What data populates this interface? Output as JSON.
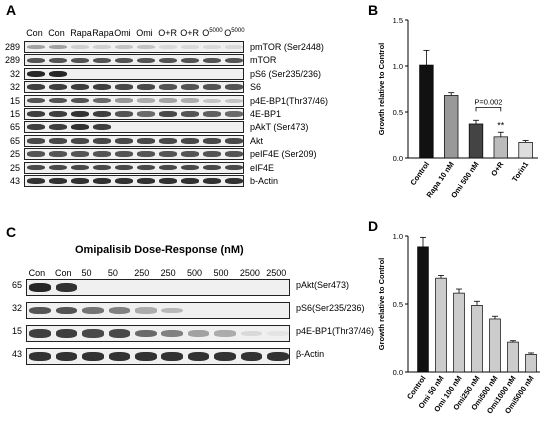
{
  "panelA": {
    "letter": "A",
    "lanes": [
      "Con",
      "Con",
      "Rapa",
      "Rapa",
      "Omi",
      "Omi",
      "O+R",
      "O+R",
      "O5000",
      "O5000"
    ],
    "rows": [
      {
        "mw": "289",
        "antibody": "pmTOR (Ser2448)",
        "levels": [
          0.35,
          0.35,
          0.15,
          0.15,
          0.2,
          0.2,
          0.1,
          0.1,
          0.1,
          0.1
        ]
      },
      {
        "mw": "289",
        "antibody": "mTOR",
        "levels": [
          0.7,
          0.7,
          0.7,
          0.7,
          0.7,
          0.7,
          0.7,
          0.7,
          0.7,
          0.7
        ]
      },
      {
        "mw": "32",
        "antibody": "pS6 (Ser235/236)",
        "levels": [
          0.9,
          0.9,
          0,
          0,
          0,
          0,
          0,
          0,
          0,
          0
        ]
      },
      {
        "mw": "32",
        "antibody": "S6",
        "levels": [
          0.8,
          0.8,
          0.8,
          0.8,
          0.75,
          0.75,
          0.7,
          0.7,
          0.7,
          0.7
        ]
      },
      {
        "mw": "15",
        "antibody": "p4E-BP1(Thr37/46)",
        "levels": [
          0.7,
          0.7,
          0.7,
          0.6,
          0.4,
          0.3,
          0.35,
          0.3,
          0.2,
          0.2
        ]
      },
      {
        "mw": "15",
        "antibody": "4E-BP1",
        "levels": [
          0.8,
          0.8,
          0.85,
          0.8,
          0.7,
          0.6,
          0.75,
          0.7,
          0.65,
          0.6
        ]
      },
      {
        "mw": "65",
        "antibody": "pAkT (Ser473)",
        "levels": [
          0.8,
          0.8,
          0.85,
          0.8,
          0,
          0,
          0,
          0,
          0,
          0
        ]
      },
      {
        "mw": "65",
        "antibody": "Akt",
        "levels": [
          0.75,
          0.75,
          0.75,
          0.75,
          0.75,
          0.75,
          0.75,
          0.75,
          0.75,
          0.75
        ]
      },
      {
        "mw": "25",
        "antibody": "peIF4E (Ser209)",
        "levels": [
          0.7,
          0.7,
          0.7,
          0.7,
          0.7,
          0.7,
          0.7,
          0.7,
          0.7,
          0.7
        ]
      },
      {
        "mw": "25",
        "antibody": "eIF4E",
        "levels": [
          0.75,
          0.75,
          0.75,
          0.75,
          0.75,
          0.75,
          0.75,
          0.75,
          0.75,
          0.75
        ]
      },
      {
        "mw": "43",
        "antibody": "b-Actin",
        "levels": [
          0.85,
          0.85,
          0.85,
          0.85,
          0.85,
          0.85,
          0.85,
          0.85,
          0.85,
          0.85
        ]
      }
    ]
  },
  "panelC": {
    "letter": "C",
    "title": "Omipalisib Dose-Response (nM)",
    "lanes": [
      "Con",
      "Con",
      "50",
      "50",
      "250",
      "250",
      "500",
      "500",
      "2500",
      "2500"
    ],
    "rows": [
      {
        "mw": "65",
        "antibody": "pAkt(Ser473)",
        "levels": [
          0.9,
          0.85,
          0,
          0,
          0,
          0,
          0,
          0,
          0,
          0
        ]
      },
      {
        "mw": "32",
        "antibody": "pS6(Ser235/236)",
        "levels": [
          0.7,
          0.7,
          0.55,
          0.5,
          0.3,
          0.25,
          0,
          0,
          0,
          0
        ]
      },
      {
        "mw": "15",
        "antibody": "p4E-BP1(Thr37/46)",
        "levels": [
          0.8,
          0.8,
          0.75,
          0.75,
          0.6,
          0.5,
          0.35,
          0.3,
          0.1,
          0.05
        ]
      },
      {
        "mw": "43",
        "antibody": "β-Actin",
        "levels": [
          0.85,
          0.85,
          0.85,
          0.85,
          0.85,
          0.85,
          0.85,
          0.85,
          0.85,
          0.85
        ]
      }
    ]
  },
  "chart_data": [
    {
      "panel": "B",
      "type": "bar",
      "ylabel": "Growth relative to Control",
      "ylim": [
        0,
        1.5
      ],
      "yticks": [
        "0.0",
        "0.5",
        "1.0",
        "1.5"
      ],
      "categories": [
        "Control",
        "Rapa 10 nM",
        "Omi 500 nM",
        "O+R",
        "Torin1"
      ],
      "values": [
        1.01,
        0.68,
        0.37,
        0.23,
        0.17
      ],
      "errors": [
        0.16,
        0.03,
        0.04,
        0.05,
        0.02
      ],
      "bar_colors": [
        "#111111",
        "#999999",
        "#444444",
        "#bbbbbb",
        "#dddddd"
      ],
      "annotations": {
        "pvalue": "P=0.002",
        "stars": "**"
      }
    },
    {
      "panel": "D",
      "type": "bar",
      "ylabel": "Growth relative to Control",
      "ylim": [
        0,
        1.0
      ],
      "yticks": [
        "0.0",
        "0.5",
        "1.0"
      ],
      "categories": [
        "Control",
        "Omi 50 nM",
        "Omi 100 nM",
        "Omi250 nM",
        "Omi500 nM",
        "Omi1000 nM",
        "Omi5000 nM"
      ],
      "values": [
        0.92,
        0.69,
        0.58,
        0.49,
        0.39,
        0.22,
        0.13
      ],
      "errors": [
        0.07,
        0.02,
        0.03,
        0.03,
        0.02,
        0.01,
        0.01
      ],
      "bar_colors": [
        "#111111",
        "#cccccc",
        "#cccccc",
        "#cccccc",
        "#cccccc",
        "#cccccc",
        "#cccccc"
      ]
    }
  ]
}
